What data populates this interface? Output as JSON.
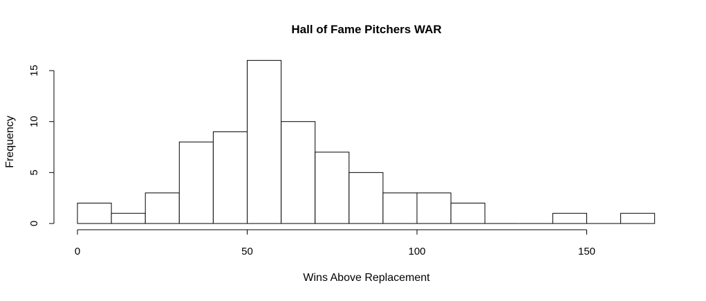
{
  "chart_data": {
    "type": "bar",
    "title": "Hall of Fame Pitchers WAR",
    "xlabel": "Wins Above Replacement",
    "ylabel": "Frequency",
    "bins": [
      {
        "start": 0,
        "end": 10,
        "count": 2
      },
      {
        "start": 10,
        "end": 20,
        "count": 1
      },
      {
        "start": 20,
        "end": 30,
        "count": 3
      },
      {
        "start": 30,
        "end": 40,
        "count": 8
      },
      {
        "start": 40,
        "end": 50,
        "count": 9
      },
      {
        "start": 50,
        "end": 60,
        "count": 16
      },
      {
        "start": 60,
        "end": 70,
        "count": 10
      },
      {
        "start": 70,
        "end": 80,
        "count": 7
      },
      {
        "start": 80,
        "end": 90,
        "count": 5
      },
      {
        "start": 90,
        "end": 100,
        "count": 3
      },
      {
        "start": 100,
        "end": 110,
        "count": 3
      },
      {
        "start": 110,
        "end": 120,
        "count": 2
      },
      {
        "start": 120,
        "end": 130,
        "count": 0
      },
      {
        "start": 130,
        "end": 140,
        "count": 0
      },
      {
        "start": 140,
        "end": 150,
        "count": 1
      },
      {
        "start": 150,
        "end": 160,
        "count": 0
      },
      {
        "start": 160,
        "end": 170,
        "count": 1
      }
    ],
    "xticks": [
      0,
      50,
      100,
      150
    ],
    "yticks": [
      0,
      5,
      10,
      15
    ],
    "xlim": [
      0,
      150
    ],
    "ylim": [
      0,
      15
    ],
    "grid": false,
    "bar_fill": "#ffffff",
    "bar_stroke": "#000000"
  }
}
